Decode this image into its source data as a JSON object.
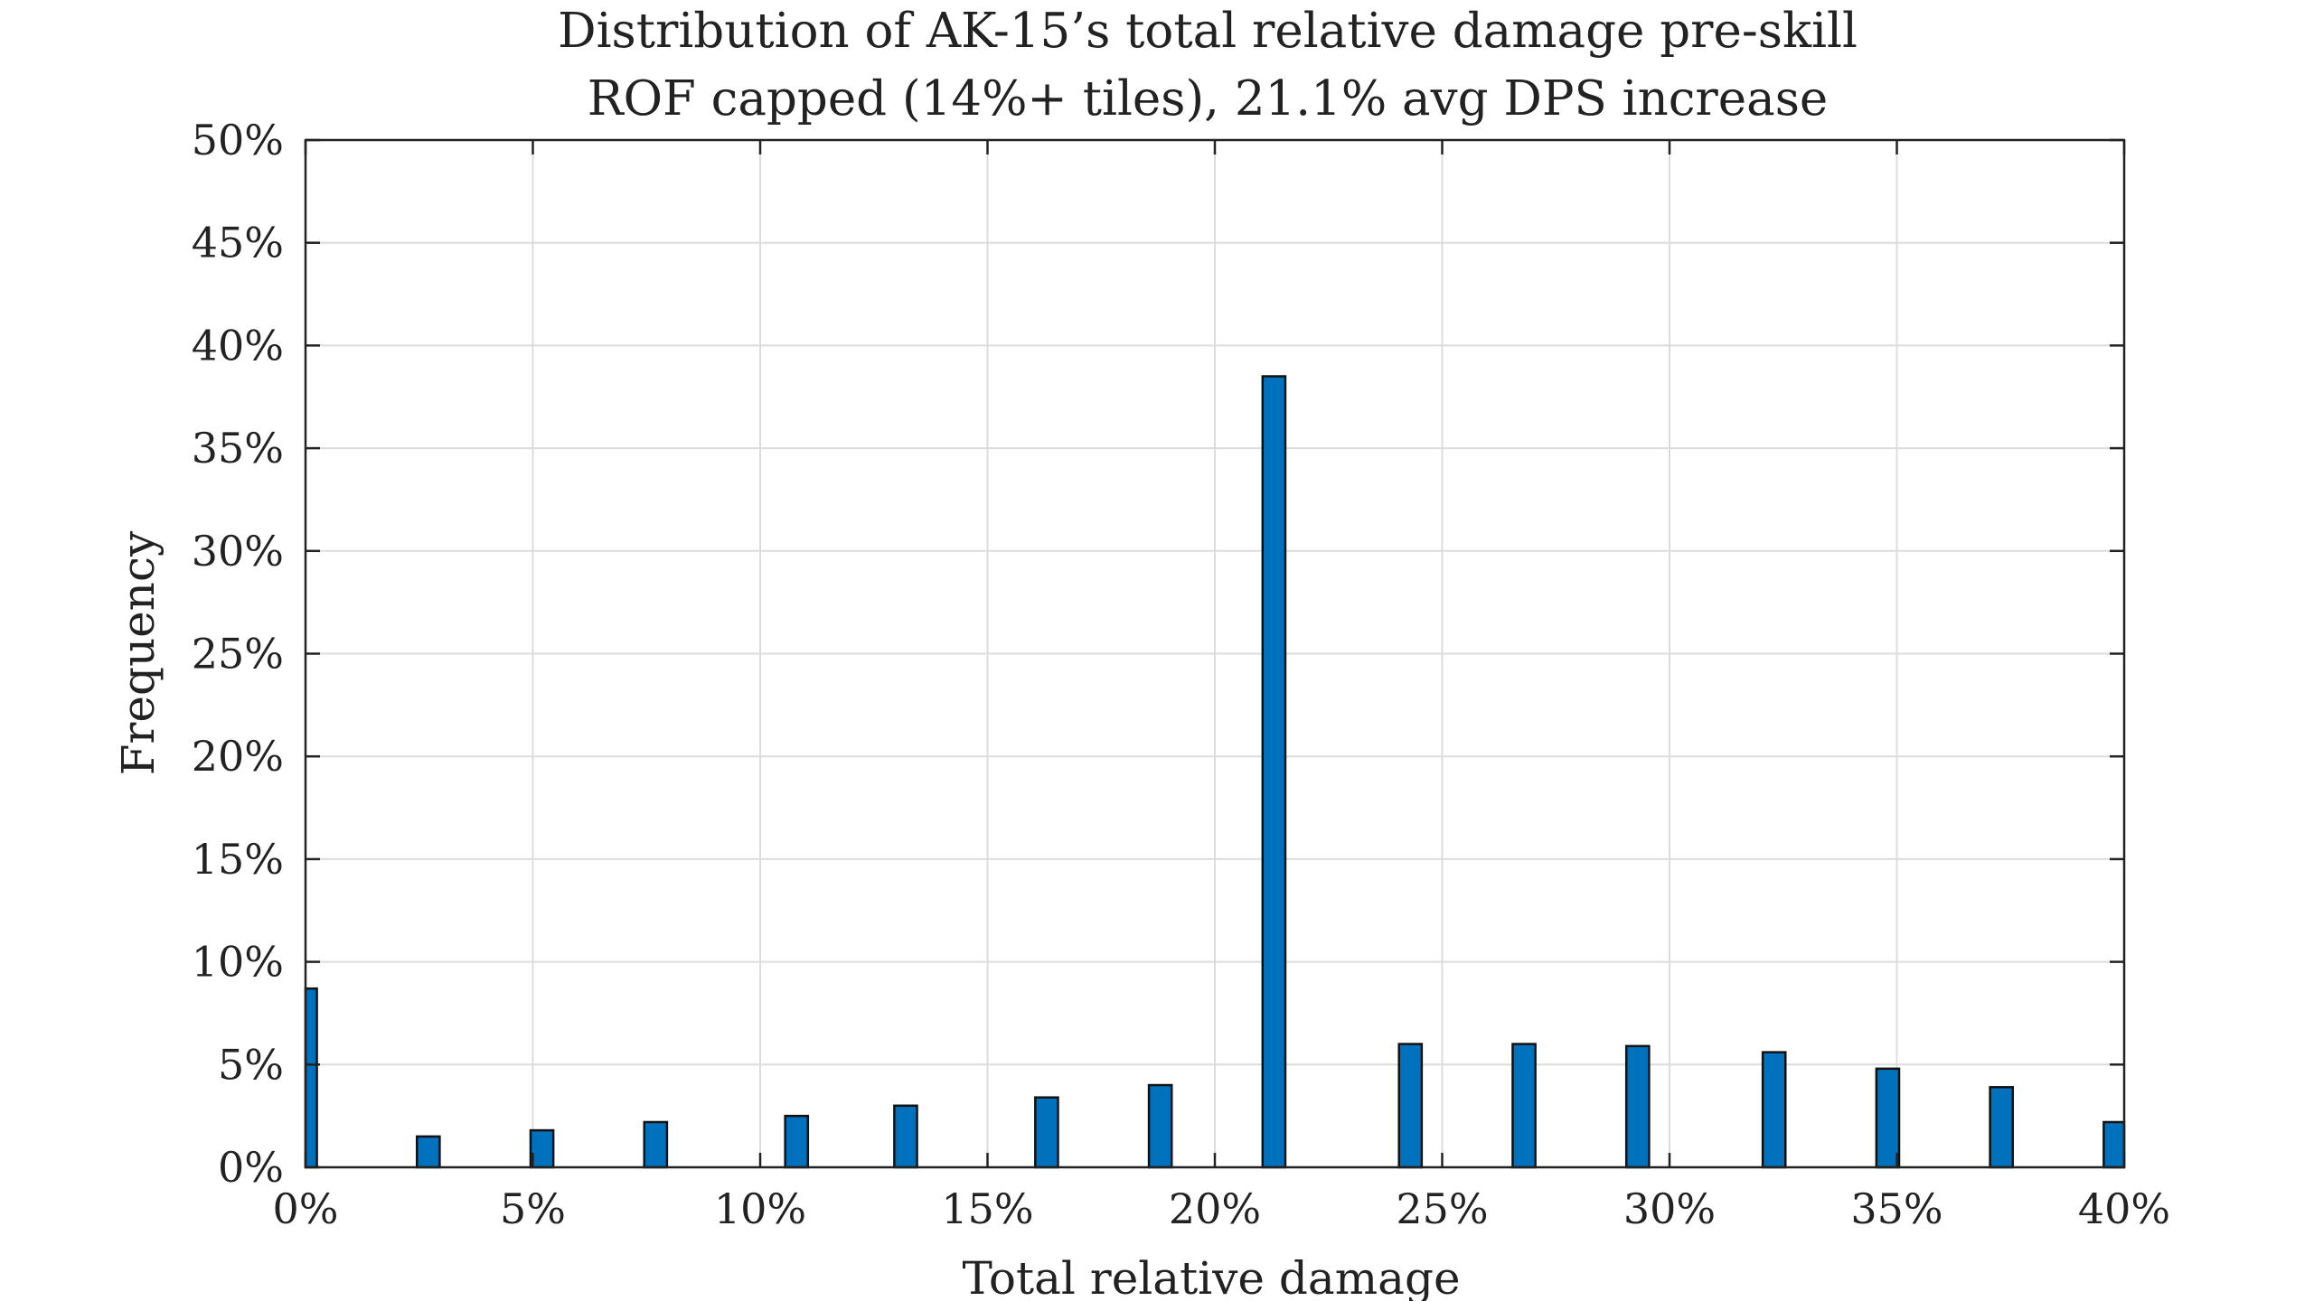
{
  "chart_data": {
    "type": "bar",
    "title": "Distribution of AK-15’s total relative damage pre-skill",
    "subtitle": "ROF capped (14%+ tiles), 21.1% avg DPS increase",
    "xlabel": "Total relative damage",
    "ylabel": "Frequency",
    "xlim": [
      0,
      40
    ],
    "ylim": [
      0,
      50
    ],
    "x_ticks": [
      "0%",
      "5%",
      "10%",
      "15%",
      "20%",
      "25%",
      "30%",
      "35%",
      "40%"
    ],
    "y_ticks": [
      "0%",
      "5%",
      "10%",
      "15%",
      "20%",
      "25%",
      "30%",
      "35%",
      "40%",
      "45%",
      "50%"
    ],
    "grid": true,
    "bar_color": "#0072BD",
    "series": [
      {
        "x": [
          0.0,
          2.7,
          5.2,
          7.7,
          10.8,
          13.2,
          16.3,
          18.8,
          21.3,
          24.3,
          26.8,
          29.3,
          32.3,
          34.8,
          37.3,
          39.8
        ],
        "values": [
          8.7,
          1.5,
          1.8,
          2.2,
          2.5,
          3.0,
          3.4,
          4.0,
          38.5,
          6.0,
          6.0,
          5.9,
          5.6,
          4.8,
          3.9,
          2.2
        ]
      }
    ]
  }
}
